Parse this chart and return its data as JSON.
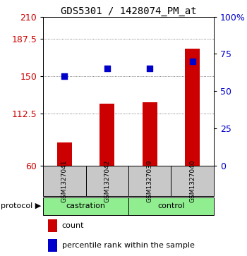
{
  "title": "GDS5301 / 1428074_PM_at",
  "samples": [
    "GSM1327041",
    "GSM1327042",
    "GSM1327039",
    "GSM1327040"
  ],
  "bar_values": [
    83,
    122,
    124,
    178
  ],
  "percentile_values": [
    60,
    65,
    65,
    70
  ],
  "left_ylim": [
    60,
    210
  ],
  "right_ylim": [
    0,
    100
  ],
  "left_yticks": [
    60,
    112.5,
    150,
    187.5,
    210
  ],
  "right_yticks": [
    0,
    25,
    50,
    75,
    100
  ],
  "right_yticklabels": [
    "0",
    "25",
    "50",
    "75",
    "100%"
  ],
  "left_ytick_color": "#cc0000",
  "right_ytick_color": "#0000cc",
  "bar_color": "#cc0000",
  "dot_color": "#0000cc",
  "grid_color": "#555555",
  "protocol_groups": [
    {
      "label": "castration",
      "color": "#90ee90"
    },
    {
      "label": "control",
      "color": "#90ee90"
    }
  ],
  "protocol_label": "protocol",
  "sample_box_color": "#c8c8c8",
  "legend_items": [
    {
      "color": "#cc0000",
      "label": "count"
    },
    {
      "color": "#0000cc",
      "label": "percentile rank within the sample"
    }
  ],
  "bar_width": 0.35,
  "dot_size": 40,
  "fig_width": 3.5,
  "fig_height": 3.63,
  "dpi": 100
}
